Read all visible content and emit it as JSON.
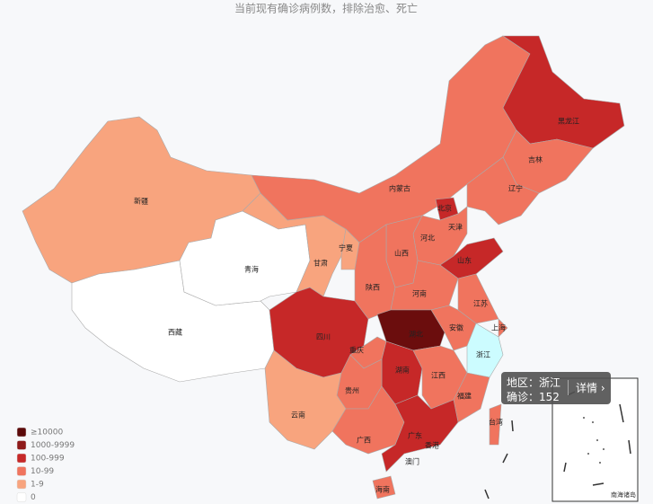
{
  "title": "当前现有确诊病例数，排除治愈、死亡",
  "regions": [
    {
      "name": "新疆",
      "color": "#f8a47e"
    },
    {
      "name": "西藏",
      "color": "#ffffff"
    },
    {
      "name": "青海",
      "color": "#ffffff"
    },
    {
      "name": "甘肃",
      "color": "#f8a47e"
    },
    {
      "name": "内蒙古",
      "color": "#f0745e"
    },
    {
      "name": "黑龙江",
      "color": "#c62828"
    },
    {
      "name": "吉林",
      "color": "#f0745e"
    },
    {
      "name": "辽宁",
      "color": "#f0745e"
    },
    {
      "name": "北京",
      "color": "#c62828"
    },
    {
      "name": "天津",
      "color": "#f0745e"
    },
    {
      "name": "河北",
      "color": "#f0745e"
    },
    {
      "name": "山西",
      "color": "#f0745e"
    },
    {
      "name": "宁夏",
      "color": "#f8a47e"
    },
    {
      "name": "陕西",
      "color": "#f0745e"
    },
    {
      "name": "山东",
      "color": "#c62828"
    },
    {
      "name": "河南",
      "color": "#f0745e"
    },
    {
      "name": "江苏",
      "color": "#f0745e"
    },
    {
      "name": "上海",
      "color": "#f0745e"
    },
    {
      "name": "安徽",
      "color": "#f0745e"
    },
    {
      "name": "浙江",
      "color": "#ccfcff"
    },
    {
      "name": "湖北",
      "color": "#6b0d0d"
    },
    {
      "name": "四川",
      "color": "#c62828"
    },
    {
      "name": "重庆",
      "color": "#f0745e"
    },
    {
      "name": "湖南",
      "color": "#c62828"
    },
    {
      "name": "江西",
      "color": "#f0745e"
    },
    {
      "name": "福建",
      "color": "#f0745e"
    },
    {
      "name": "贵州",
      "color": "#f0745e"
    },
    {
      "name": "云南",
      "color": "#f8a47e"
    },
    {
      "name": "广西",
      "color": "#f0745e"
    },
    {
      "name": "广东",
      "color": "#c62828"
    },
    {
      "name": "海南",
      "color": "#f0745e"
    },
    {
      "name": "台湾",
      "color": "#f0745e"
    }
  ],
  "extra_labels": [
    "香港",
    "澳门"
  ],
  "legend": [
    {
      "label": "≥10000",
      "color": "#5c0a0a"
    },
    {
      "label": "1000-9999",
      "color": "#8e1a1a"
    },
    {
      "label": "100-999",
      "color": "#c62828"
    },
    {
      "label": "10-99",
      "color": "#f0745e"
    },
    {
      "label": "1-9",
      "color": "#f8a47e"
    },
    {
      "label": "0",
      "color": "#ffffff"
    }
  ],
  "tooltip": {
    "region_label": "地区：",
    "region": "浙江",
    "count_label": "确诊：",
    "count": 152,
    "button": "详情"
  },
  "inset_label": "南海诸岛"
}
